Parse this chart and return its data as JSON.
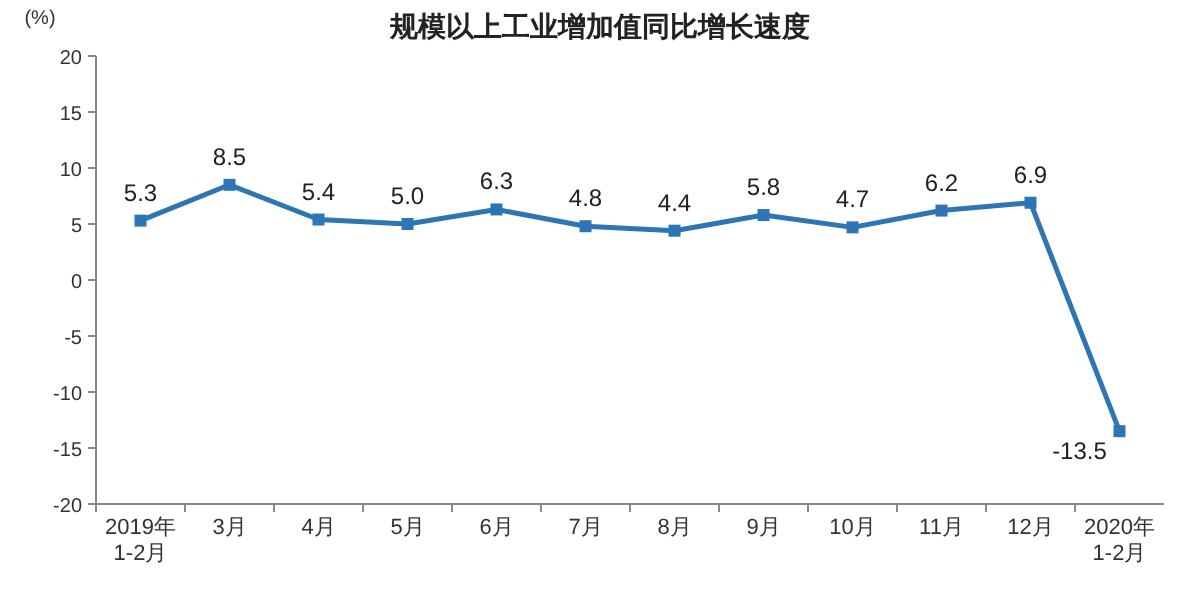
{
  "chart_data": {
    "type": "line",
    "title": "规模以上工业增加值同比增长速度",
    "ylabel": "(%)",
    "categories": [
      "2019年\n1-2月",
      "3月",
      "4月",
      "5月",
      "6月",
      "7月",
      "8月",
      "9月",
      "10月",
      "11月",
      "12月",
      "2020年\n1-2月"
    ],
    "series": [
      {
        "color": "#2e75b6",
        "values": [
          5.3,
          8.5,
          5.4,
          5.0,
          6.3,
          4.8,
          4.4,
          5.8,
          4.7,
          6.2,
          6.9,
          -13.5
        ]
      }
    ],
    "value_labels": [
      "5.3",
      "8.5",
      "5.4",
      "5.0",
      "6.3",
      "4.8",
      "4.4",
      "5.8",
      "4.7",
      "6.2",
      "6.9",
      "-13.5"
    ],
    "ylim": [
      -20,
      20
    ],
    "yticks": [
      -20,
      -15,
      -10,
      -5,
      0,
      5,
      10,
      15,
      20
    ],
    "marker": "square",
    "line_style": "solid",
    "grid": false
  }
}
